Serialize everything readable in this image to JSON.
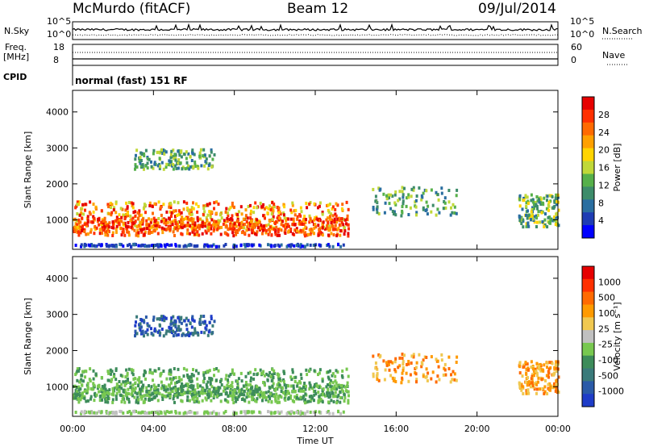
{
  "header": {
    "station": "McMurdo (fitACF)",
    "beam": "Beam 12",
    "date": "09/Jul/2014"
  },
  "strip_labels": {
    "nsky": "N.Sky",
    "nsearch": "N.Search",
    "freq": "Freq.",
    "freq_unit": "[MHz]",
    "nave": "Nave",
    "cpid": "CPID",
    "cpid_text": "normal (fast) 151 RF",
    "noise_ticks": [
      "10^5",
      "10^0"
    ],
    "freq_ticks": [
      "18",
      "8"
    ],
    "nave_ticks": [
      "60",
      "0"
    ]
  },
  "chart_data": [
    {
      "type": "heatmap",
      "title": "",
      "xlabel": "Time UT",
      "ylabel": "Slant Range [km]",
      "xlim": [
        0,
        24
      ],
      "ylim": [
        180,
        4600
      ],
      "x_ticks": [
        "00:00",
        "04:00",
        "08:00",
        "12:00",
        "16:00",
        "20:00",
        "00:00"
      ],
      "y_ticks": [
        "1000",
        "2000",
        "3000",
        "4000"
      ],
      "colorbar": {
        "label": "Power [dB]",
        "ticks": [
          "4",
          "8",
          "12",
          "16",
          "20",
          "24",
          "28"
        ],
        "colors": [
          "#0000ff",
          "#1e3cb4",
          "#2a6ea0",
          "#3d8c6a",
          "#56b04a",
          "#c0d838",
          "#ffd400",
          "#ffa000",
          "#ff6a00",
          "#ff3000",
          "#e60000"
        ]
      }
    },
    {
      "type": "heatmap",
      "title": "",
      "xlabel": "Time UT",
      "ylabel": "Slant Range [km]",
      "xlim": [
        0,
        24
      ],
      "ylim": [
        180,
        4600
      ],
      "x_ticks": [
        "00:00",
        "04:00",
        "08:00",
        "12:00",
        "16:00",
        "20:00",
        "00:00"
      ],
      "y_ticks": [
        "1000",
        "2000",
        "3000",
        "4000"
      ],
      "colorbar": {
        "label": "Velocity [m s⁻¹]",
        "ticks": [
          "1000",
          "500",
          "100",
          "25",
          "-25",
          "-100",
          "-500",
          "-1000"
        ],
        "colors": [
          "#1e3cc8",
          "#2a5aa8",
          "#3a7a7a",
          "#3d8c5a",
          "#78c850",
          "#c0c0c0",
          "#f0c850",
          "#ff9a00",
          "#ff6a00",
          "#ff3000",
          "#e60000"
        ]
      }
    }
  ]
}
